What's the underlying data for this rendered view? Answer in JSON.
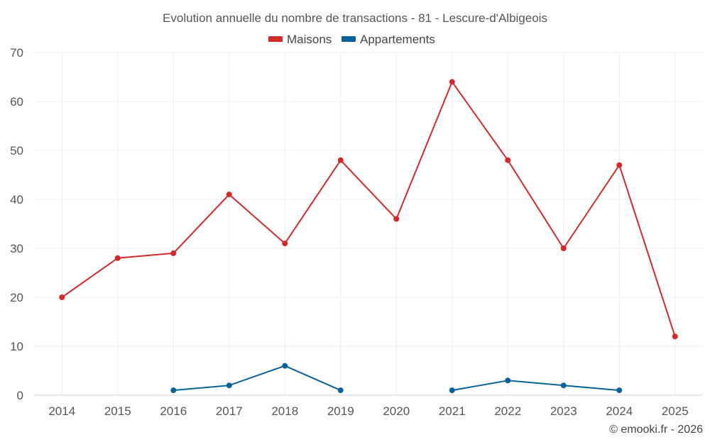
{
  "chart_data": {
    "type": "line",
    "title": "Evolution annuelle du nombre de transactions - 81 - Lescure-d'Albigeois",
    "categories": [
      "2014",
      "2015",
      "2016",
      "2017",
      "2018",
      "2019",
      "2020",
      "2021",
      "2022",
      "2023",
      "2024",
      "2025"
    ],
    "series": [
      {
        "name": "Maisons",
        "color": "#d22a2a",
        "values": [
          20,
          28,
          29,
          41,
          31,
          48,
          36,
          64,
          48,
          30,
          47,
          12
        ]
      },
      {
        "name": "Appartements",
        "color": "#08629a",
        "values": [
          null,
          null,
          1,
          2,
          6,
          1,
          null,
          1,
          3,
          2,
          1,
          null
        ]
      }
    ],
    "ylim": [
      0,
      70
    ],
    "yticks": [
      "0",
      "10",
      "20",
      "30",
      "40",
      "50",
      "60",
      "70"
    ],
    "grid": true,
    "legend_position": "top-center",
    "xlabel": "",
    "ylabel": ""
  },
  "credit": "© emooki.fr - 2026"
}
